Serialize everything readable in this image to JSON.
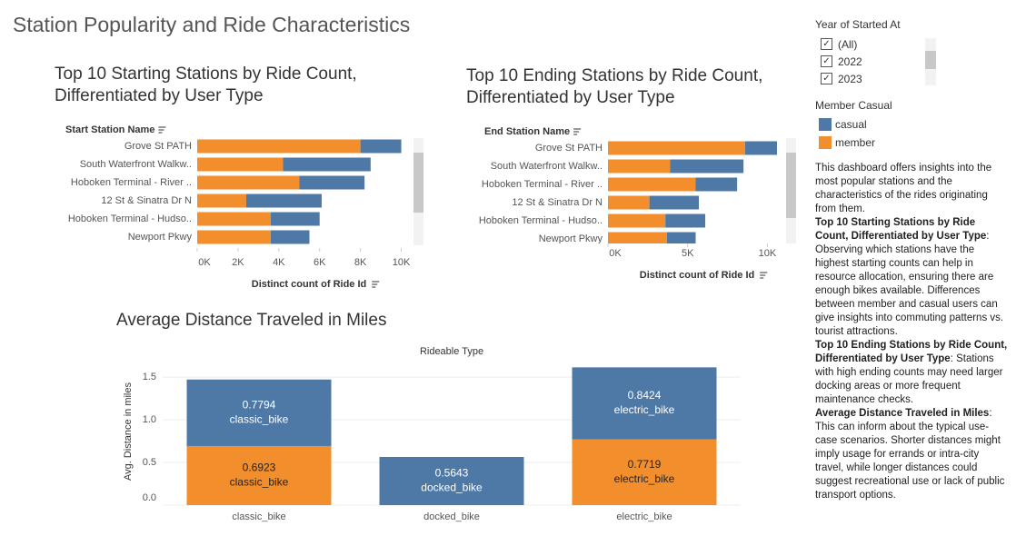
{
  "title": "Station Popularity and Ride Characteristics",
  "chart_data": [
    {
      "type": "bar",
      "orientation": "horizontal",
      "stacked": true,
      "title": "Top 10 Starting Stations by Ride Count, Differentiated by User Type",
      "y_label": "Start Station Name",
      "x_label": "Distinct count of Ride Id",
      "categories": [
        "Grove St PATH",
        "South Waterfront Walkw..",
        "Hoboken Terminal - River ..",
        "12 St & Sinatra Dr N",
        "Hoboken Terminal - Hudso..",
        "Newport Pkwy"
      ],
      "series": [
        {
          "name": "member",
          "color": "#f28e2b",
          "values": [
            8000,
            4200,
            5000,
            2400,
            3600,
            3600
          ]
        },
        {
          "name": "casual",
          "color": "#4e79a7",
          "values": [
            2000,
            4300,
            3200,
            3700,
            2400,
            1900
          ]
        }
      ],
      "xlim": [
        0,
        10600
      ],
      "xticks": [
        {
          "value": 0,
          "label": "0K"
        },
        {
          "value": 2000,
          "label": "2K"
        },
        {
          "value": 4000,
          "label": "4K"
        },
        {
          "value": 6000,
          "label": "6K"
        },
        {
          "value": 8000,
          "label": "8K"
        },
        {
          "value": 10000,
          "label": "10K"
        }
      ],
      "grid": false
    },
    {
      "type": "bar",
      "orientation": "horizontal",
      "stacked": true,
      "title": "Top 10  Ending Stations by Ride Count, Differentiated by User Type",
      "y_label": "End Station Name",
      "x_label": "Distinct count of Ride Id",
      "categories": [
        "Grove St PATH",
        "South Waterfront Walkw..",
        "Hoboken Terminal - River ..",
        "12 St & Sinatra Dr N",
        "Hoboken Terminal - Hudso..",
        "Newport Pkwy"
      ],
      "series": [
        {
          "name": "member",
          "color": "#f28e2b",
          "values": [
            8600,
            3900,
            5500,
            2600,
            3600,
            3700
          ]
        },
        {
          "name": "casual",
          "color": "#4e79a7",
          "values": [
            2000,
            4600,
            2600,
            3100,
            2500,
            1800
          ]
        }
      ],
      "xlim": [
        0,
        11000
      ],
      "xticks": [
        {
          "value": 0,
          "label": "0K"
        },
        {
          "value": 5000,
          "label": "5K"
        },
        {
          "value": 10000,
          "label": "10K"
        }
      ],
      "grid": false
    },
    {
      "type": "bar",
      "orientation": "vertical",
      "stacked": true,
      "title": "Average Distance Traveled in Miles",
      "x_label": "Rideable Type",
      "y_label": "Avg. Distance in miles",
      "categories": [
        "classic_bike",
        "docked_bike",
        "electric_bike"
      ],
      "series": [
        {
          "name": "member",
          "color": "#f28e2b",
          "values": [
            0.6923,
            null,
            0.7719
          ]
        },
        {
          "name": "casual",
          "color": "#4e79a7",
          "values": [
            0.7794,
            0.5643,
            0.8424
          ]
        }
      ],
      "ylim": [
        0,
        1.65
      ],
      "yticks": [
        {
          "value": 0,
          "label": "0.0"
        },
        0.5,
        {
          "value": 1,
          "label": "1.0"
        },
        1.5
      ],
      "grid": true
    }
  ],
  "filter": {
    "title": "Year of Started At",
    "options": [
      "(All)",
      "2022",
      "2023"
    ]
  },
  "legend": {
    "title": "Member Casual"
  },
  "description": [
    {
      "text": "This dashboard offers insights into the most popular stations and the characteristics of the rides originating from them."
    },
    {
      "heading": "Top 10 Starting Stations by Ride Count, Differentiated by User Type",
      "text": ": Observing which stations have the highest starting counts can help in resource allocation, ensuring there are enough bikes available. Differences between member and casual users can give insights into commuting patterns vs. tourist attractions."
    },
    {
      "heading": "Top 10 Ending Stations by Ride Count, Differentiated by User Type",
      "text": ": Stations with high ending counts may need larger docking areas or more frequent maintenance checks."
    },
    {
      "heading": "Average Distance Traveled in Miles",
      "text": ": This can inform about the typical use-case scenarios. Shorter distances might imply usage for errands or intra-city travel, while longer distances could suggest recreational use or lack of public transport options."
    }
  ]
}
